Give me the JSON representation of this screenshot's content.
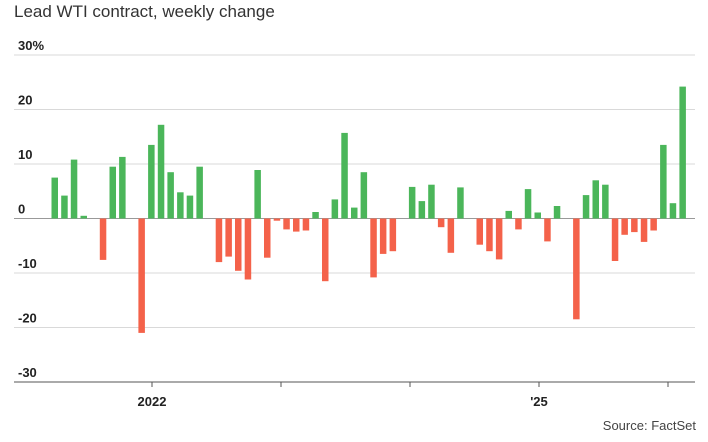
{
  "chart_data": {
    "type": "bar",
    "title": "Lead WTI contract, weekly change",
    "source": "Source: FactSet",
    "ylim": [
      -30,
      30
    ],
    "y_ticks": [
      30,
      20,
      10,
      0,
      -10,
      -20,
      -30
    ],
    "y_tick_labels": [
      "30%",
      "20",
      "10",
      "0",
      "-10",
      "-20",
      "-30"
    ],
    "x_tick_labels": [
      "2022",
      "",
      "",
      "'25",
      ""
    ],
    "grid": true,
    "colors": {
      "positive": "#4bb65a",
      "negative": "#f4624a",
      "grid": "#d9d9d9",
      "axis": "#555555"
    },
    "values": [
      7.5,
      4.2,
      10.8,
      0.5,
      0,
      -7.6,
      9.5,
      11.3,
      0,
      -21.0,
      13.5,
      17.2,
      8.5,
      4.8,
      4.2,
      9.5,
      0,
      -8.0,
      -7.0,
      -9.6,
      -11.2,
      8.9,
      -7.2,
      -0.4,
      -2.0,
      -2.4,
      -2.2,
      1.2,
      -11.5,
      3.5,
      15.7,
      2.0,
      8.5,
      -10.8,
      -6.5,
      -6.0,
      0,
      5.8,
      3.2,
      6.2,
      -1.6,
      -6.3,
      5.7,
      0,
      -4.8,
      -6.0,
      -7.5,
      1.4,
      -2.0,
      5.4,
      1.1,
      -4.2,
      2.3,
      0,
      -18.5,
      4.3,
      7.0,
      6.2,
      -7.8,
      -3.0,
      -2.5,
      -4.3,
      -2.2,
      13.5,
      2.8,
      24.2
    ]
  }
}
